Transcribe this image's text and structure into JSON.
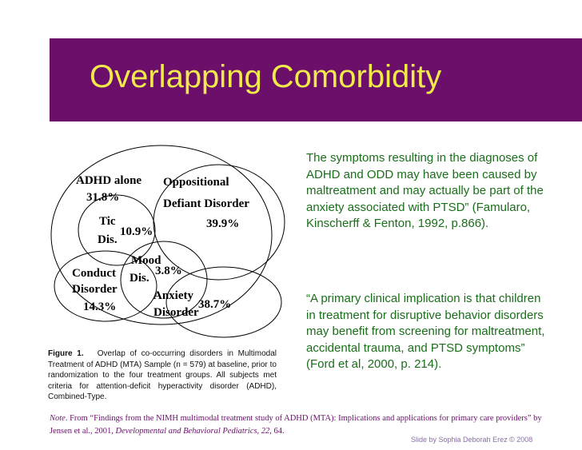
{
  "slide": {
    "title": "Overlapping Comorbidity",
    "credit": "Slide by Sophia Deborah Erez  © 2008"
  },
  "venn": {
    "adhd_alone": {
      "label": "ADHD alone",
      "value": "31.8%"
    },
    "odd": {
      "label_line1": "Oppositional",
      "label_line2": "Defiant Disorder",
      "value": "39.9%"
    },
    "tic": {
      "label_line1": "Tic",
      "label_line2": "Dis.",
      "value": "10.9%"
    },
    "mood": {
      "label_line1": "Mood",
      "label_line2": "Dis.",
      "value": "3.8%"
    },
    "conduct": {
      "label_line1": "Conduct",
      "label_line2": "Disorder",
      "value": "14.3%"
    },
    "anxiety": {
      "label_line1": "Anxiety",
      "label_line2": "Disorder",
      "value": "38.7%"
    }
  },
  "figure_caption": {
    "label": "Figure 1.",
    "text": "Overlap of co-occurring disorders in Multimodal Treatment of ADHD (MTA) Sample (n = 579) at baseline, prior to randomization to the four treatment groups. All subjects met criteria for attention-deficit hyperactivity disorder (ADHD), Combined-Type."
  },
  "quotes": {
    "quote1": "The symptoms resulting in the diagnoses of ADHD and ODD may have been caused by maltreatment and may actually be part of the anxiety associated with PTSD” (Famularo, Kinscherff & Fenton, 1992, p.866).",
    "quote2": "“A primary clinical implication is that children in treatment for disruptive behavior disorders may benefit from screening for maltreatment, accidental trauma, and PTSD symptoms” (Ford et al, 2000, p. 214)."
  },
  "note": {
    "label": "Note",
    "text_before": ". From “Findings from the NIMH multimodal treatment study of ADHD (MTA): Implications and applications for primary care providers” by Jensen et al., 2001, ",
    "journal": "Developmental and Behavioral Pediatrics, 22",
    "text_after": ", 64."
  },
  "colors": {
    "title_bar": "#6b0f6b",
    "title_text": "#f2e94a",
    "quote_text": "#1a6e1a",
    "note_text": "#6b0f6b",
    "credit_text": "#8a6ea8"
  }
}
